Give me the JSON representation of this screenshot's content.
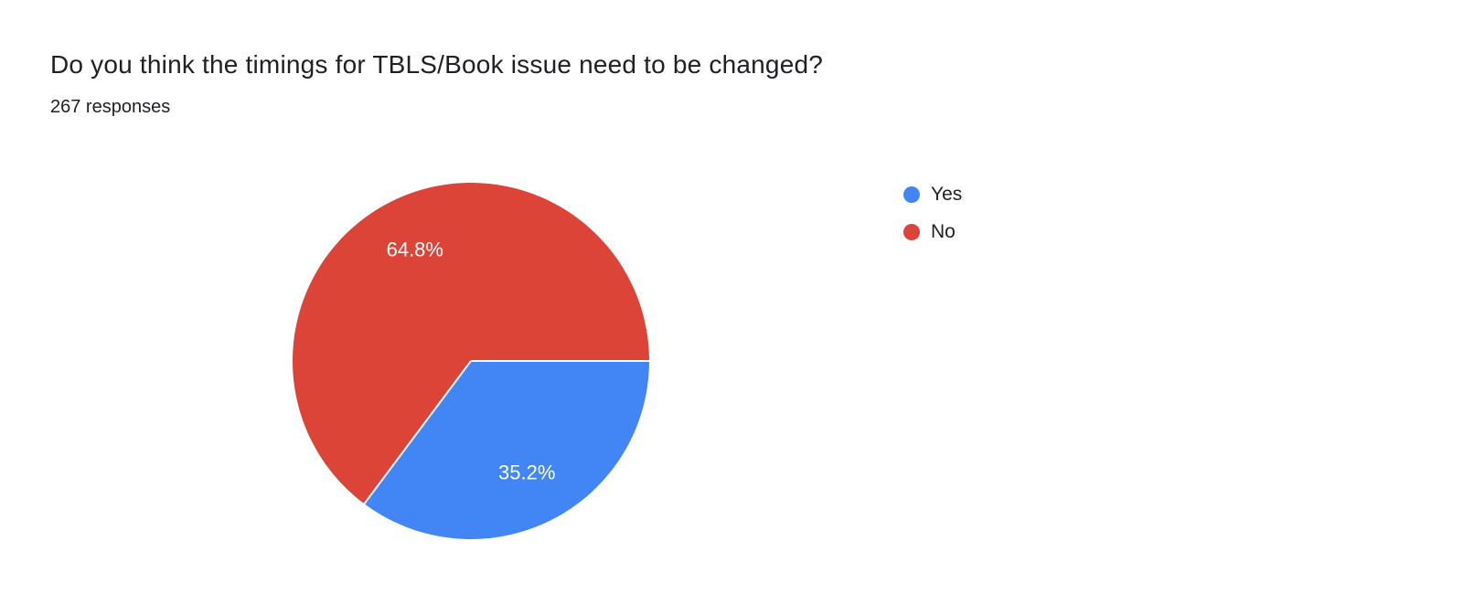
{
  "header": {
    "title": "Do you think the timings for TBLS/Book issue need to be changed?",
    "responses": "267 responses"
  },
  "chart_data": {
    "type": "pie",
    "title": "Do you think the timings for TBLS/Book issue need to be changed?",
    "subtitle": "267 responses",
    "legend_position": "right",
    "start_angle_deg": 90,
    "label_color": "#ffffff",
    "slices": [
      {
        "label": "Yes",
        "value_pct": 35.2,
        "display": "35.2%",
        "color": "#4285f4"
      },
      {
        "label": "No",
        "value_pct": 64.8,
        "display": "64.8%",
        "color": "#db4437"
      }
    ]
  }
}
